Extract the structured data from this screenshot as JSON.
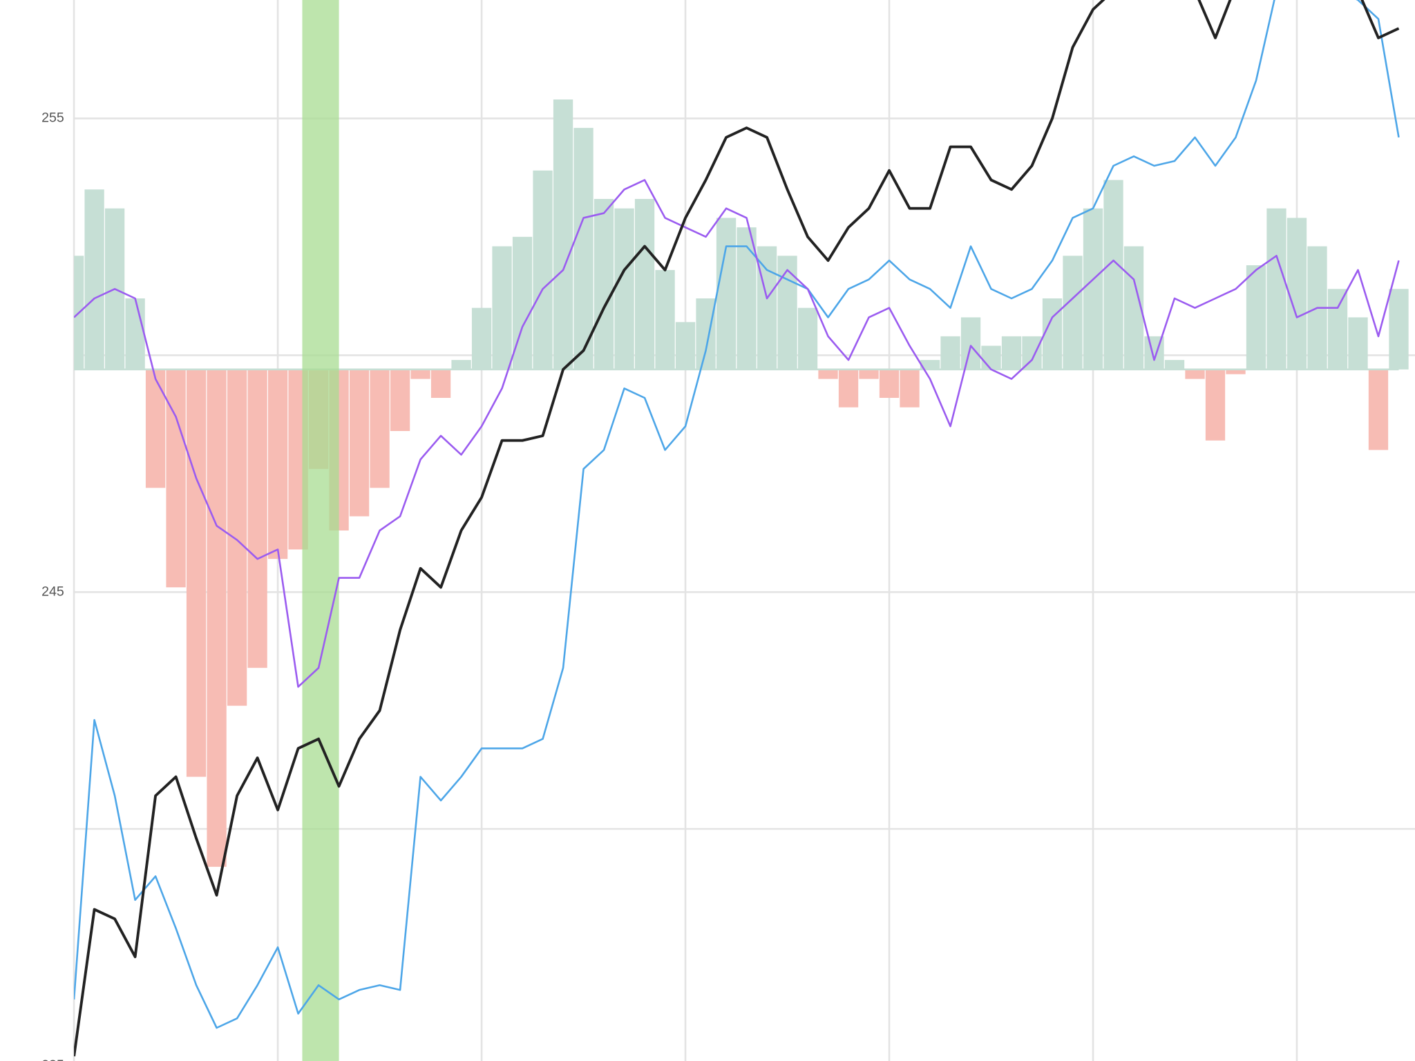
{
  "chart_data": {
    "type": "line",
    "x": [
      0,
      1,
      2,
      3,
      4,
      5,
      6,
      7,
      8,
      9,
      10,
      11,
      12,
      13,
      14,
      15,
      16,
      17,
      18,
      19,
      20,
      21,
      22,
      23,
      24,
      25,
      26,
      27,
      28,
      29,
      30,
      31,
      32,
      33,
      34,
      35,
      36,
      37,
      38,
      39,
      40,
      41,
      42,
      43,
      44,
      45,
      46,
      47,
      48,
      49,
      50,
      51,
      52,
      53,
      54,
      55,
      56,
      57,
      58,
      59,
      60,
      61,
      62,
      63,
      64,
      65
    ],
    "xlim": [
      0,
      65
    ],
    "xgrid": [
      0,
      10,
      20,
      30,
      40,
      50,
      60
    ],
    "ylim": [
      235.1,
      257.5
    ],
    "yticks": [
      235,
      245,
      255
    ],
    "ygrid_minor": [
      240,
      250
    ],
    "grid": true,
    "highlight": {
      "from": 11.2,
      "to": 13.0,
      "color": "#a8dc92"
    },
    "histogram": {
      "base": 249.7,
      "up_color": "#c6dfd5",
      "down_color": "#f7bcb4",
      "values": [
        252.1,
        253.5,
        253.1,
        251.2,
        247.2,
        245.1,
        241.1,
        239.2,
        242.6,
        243.4,
        245.7,
        245.9,
        247.6,
        246.3,
        246.6,
        247.2,
        248.4,
        249.5,
        249.1,
        249.9,
        251.0,
        252.3,
        252.5,
        253.9,
        255.4,
        254.8,
        253.3,
        253.1,
        253.3,
        251.8,
        250.7,
        251.2,
        252.9,
        252.7,
        252.3,
        252.1,
        251.0,
        249.5,
        248.9,
        249.5,
        249.1,
        248.9,
        249.9,
        250.4,
        250.8,
        250.2,
        250.4,
        250.4,
        251.2,
        252.1,
        253.1,
        253.7,
        252.3,
        250.4,
        249.9,
        249.5,
        248.2,
        249.6,
        251.9,
        253.1,
        252.9,
        252.3,
        251.4,
        250.8,
        248.0,
        251.4
      ]
    },
    "series": [
      {
        "color": "#4da6e8",
        "width": 2,
        "values": [
          236.4,
          242.3,
          240.7,
          238.5,
          239.0,
          237.9,
          236.7,
          235.8,
          236.0,
          236.7,
          237.5,
          236.1,
          236.7,
          236.4,
          236.6,
          236.7,
          236.6,
          241.1,
          240.6,
          241.1,
          241.7,
          241.7,
          241.7,
          241.9,
          243.4,
          247.6,
          248.0,
          249.3,
          249.1,
          248.0,
          248.5,
          250.1,
          252.3,
          252.3,
          251.8,
          251.6,
          251.4,
          250.8,
          251.4,
          251.6,
          252.0,
          251.6,
          251.4,
          251.0,
          252.3,
          251.4,
          251.2,
          251.4,
          252.0,
          252.9,
          253.1,
          254.0,
          254.2,
          254.0,
          254.1,
          254.6,
          254.0,
          254.6,
          255.8,
          257.7,
          257.8,
          257.7,
          257.7,
          257.5,
          257.1,
          254.6
        ]
      },
      {
        "color": "#9b5cf0",
        "width": 2,
        "values": [
          250.8,
          251.2,
          251.4,
          251.2,
          249.5,
          248.7,
          247.4,
          246.4,
          246.1,
          245.7,
          245.9,
          243.0,
          243.4,
          245.3,
          245.3,
          246.3,
          246.6,
          247.8,
          248.3,
          247.9,
          248.5,
          249.3,
          250.6,
          251.4,
          251.8,
          252.9,
          253.0,
          253.5,
          253.7,
          252.9,
          252.7,
          252.5,
          253.1,
          252.9,
          251.2,
          251.8,
          251.4,
          250.4,
          249.9,
          250.8,
          251.0,
          250.2,
          249.5,
          248.5,
          250.2,
          249.7,
          249.5,
          249.9,
          250.8,
          251.2,
          251.6,
          252.0,
          251.6,
          249.9,
          251.2,
          251.0,
          251.2,
          251.4,
          251.8,
          252.1,
          250.8,
          251.0,
          251.0,
          251.8,
          250.4,
          252.0
        ]
      },
      {
        "color": "#222222",
        "width": 3,
        "values": [
          235.2,
          238.3,
          238.1,
          237.3,
          240.7,
          241.1,
          239.8,
          238.6,
          240.7,
          241.5,
          240.4,
          241.7,
          241.9,
          240.9,
          241.9,
          242.5,
          244.2,
          245.5,
          245.1,
          246.3,
          247.0,
          248.2,
          248.2,
          248.3,
          249.7,
          250.1,
          251.0,
          251.8,
          252.3,
          251.8,
          252.9,
          253.7,
          254.6,
          254.8,
          254.6,
          253.5,
          252.5,
          252.0,
          252.7,
          253.1,
          253.9,
          253.1,
          253.1,
          254.4,
          254.4,
          253.7,
          253.5,
          254.0,
          255.0,
          256.5,
          257.3,
          257.7,
          258.0,
          257.8,
          257.8,
          257.7,
          256.7,
          257.8,
          258.0,
          258.0,
          257.8,
          257.8,
          257.8,
          257.7,
          256.7,
          256.9
        ]
      }
    ]
  }
}
